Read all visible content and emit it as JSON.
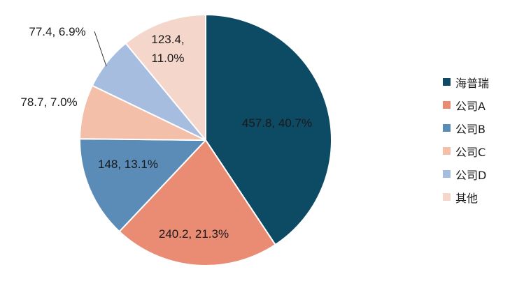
{
  "chart_data": {
    "type": "pie",
    "categories": [
      "海普瑞",
      "公司A",
      "公司B",
      "公司C",
      "公司D",
      "其他"
    ],
    "values": [
      457.8,
      240.2,
      148,
      78.7,
      77.4,
      123.4
    ],
    "percentages": [
      40.7,
      21.3,
      13.1,
      7.0,
      6.9,
      11.0
    ],
    "data_labels": [
      "457.8, 40.7%",
      "240.2, 21.3%",
      "148, 13.1%",
      "78.7, 7.0%",
      "77.4, 6.9%",
      "123.4, 11.0%"
    ],
    "colors": [
      "#0d4a63",
      "#ea8c74",
      "#5b8cb8",
      "#f4bfa9",
      "#a6bde0",
      "#f5d6cb"
    ],
    "title": "",
    "legend_position": "right",
    "start_angle": "12 o'clock, clockwise"
  },
  "legend": {
    "items": [
      {
        "label": "海普瑞",
        "color": "#0d4a63"
      },
      {
        "label": "公司A",
        "color": "#ea8c74"
      },
      {
        "label": "公司B",
        "color": "#5b8cb8"
      },
      {
        "label": "公司C",
        "color": "#f4bfa9"
      },
      {
        "label": "公司D",
        "color": "#a6bde0"
      },
      {
        "label": "其他",
        "color": "#f5d6cb"
      }
    ]
  }
}
